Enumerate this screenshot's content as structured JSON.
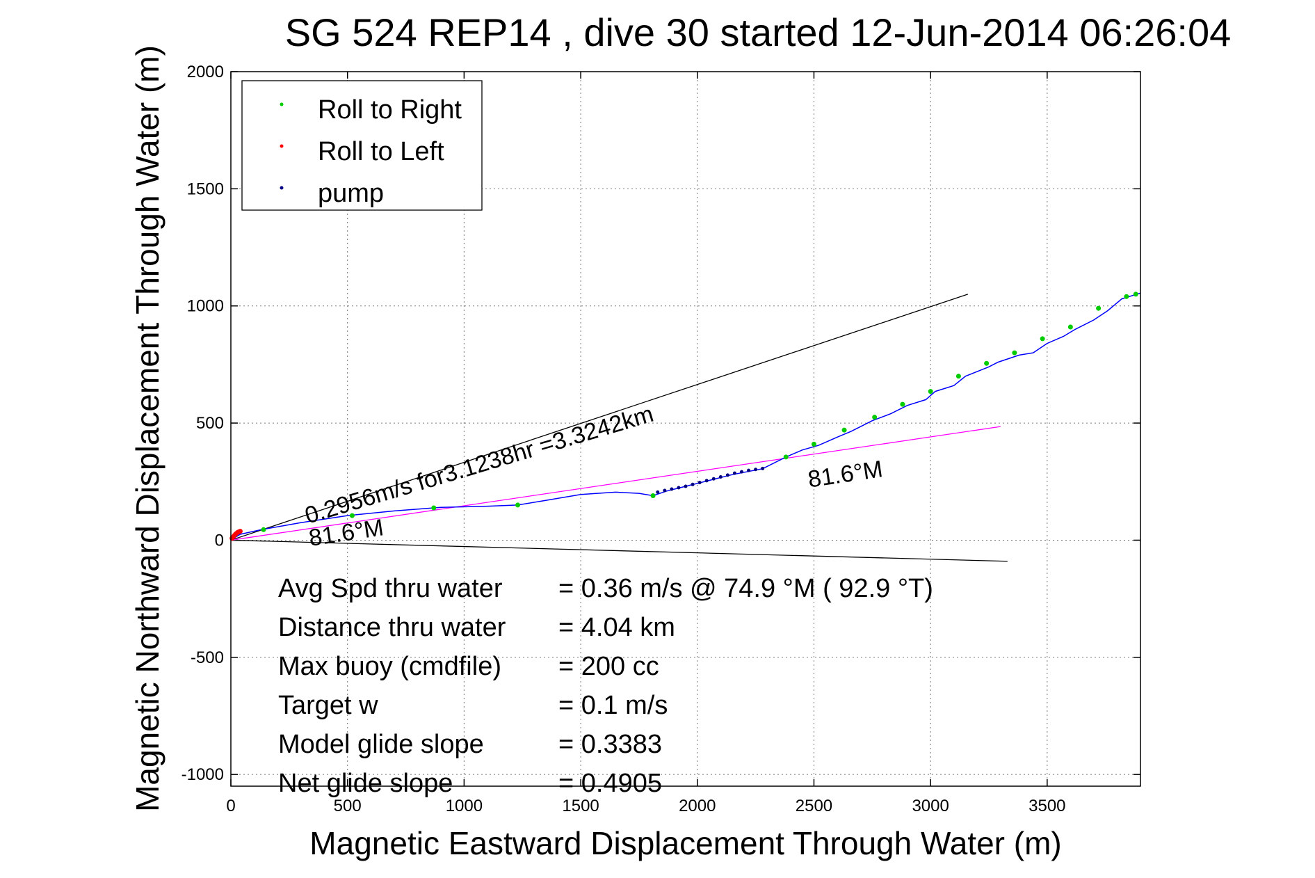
{
  "chart_data": {
    "type": "scatter",
    "title": "SG 524   REP14  , dive 30 started 12-Jun-2014 06:26:04",
    "xlabel": "Magnetic Eastward Displacement Through Water (m)",
    "ylabel": "Magnetic Northward Displacement Through Water (m)",
    "xlim": [
      0,
      3900
    ],
    "ylim": [
      -1050,
      2000
    ],
    "xticks": [
      0,
      500,
      1000,
      1500,
      2000,
      2500,
      3000,
      3500
    ],
    "yticks": [
      -1000,
      -500,
      0,
      500,
      1000,
      1500,
      2000
    ],
    "grid": true,
    "legend_position": "top-left",
    "legend": [
      {
        "label": "Roll to Right",
        "color": "#00cc00"
      },
      {
        "label": "Roll to Left",
        "color": "#ff0000"
      },
      {
        "label": "pump",
        "color": "#000080"
      }
    ],
    "track": {
      "color": "#0000ff",
      "x": [
        0,
        40,
        130,
        300,
        500,
        700,
        900,
        1100,
        1230,
        1350,
        1500,
        1650,
        1750,
        1810,
        1870,
        1950,
        2050,
        2150,
        2280,
        2380,
        2450,
        2520,
        2600,
        2660,
        2750,
        2830,
        2900,
        2980,
        3020,
        3100,
        3150,
        3250,
        3290,
        3380,
        3440,
        3500,
        3570,
        3620,
        3700,
        3760,
        3820,
        3900
      ],
      "y": [
        0,
        25,
        45,
        75,
        105,
        125,
        140,
        145,
        150,
        170,
        195,
        205,
        200,
        190,
        210,
        230,
        255,
        280,
        305,
        355,
        385,
        405,
        440,
        465,
        510,
        540,
        575,
        600,
        635,
        660,
        700,
        740,
        760,
        790,
        800,
        840,
        870,
        900,
        940,
        980,
        1030,
        1055
      ]
    },
    "roll_right_points": {
      "x": [
        140,
        520,
        870,
        1230,
        1810,
        2380,
        2500,
        2630,
        2760,
        2880,
        3000,
        3120,
        3240,
        3360,
        3480,
        3600,
        3720,
        3840,
        3880
      ],
      "y": [
        45,
        105,
        138,
        150,
        190,
        355,
        410,
        470,
        525,
        580,
        635,
        700,
        755,
        800,
        860,
        910,
        990,
        1040,
        1050
      ]
    },
    "roll_left_points": {
      "x": [
        5,
        10,
        15,
        20,
        25,
        30,
        35,
        40
      ],
      "y": [
        8,
        14,
        20,
        26,
        30,
        34,
        36,
        38
      ]
    },
    "pump_points": {
      "x": [
        1830,
        1860,
        1890,
        1920,
        1950,
        1980,
        2010,
        2040,
        2070,
        2100,
        2130,
        2160,
        2190,
        2220,
        2250,
        2280
      ],
      "y": [
        205,
        212,
        218,
        224,
        230,
        238,
        246,
        254,
        262,
        270,
        278,
        286,
        292,
        298,
        302,
        306
      ]
    },
    "reference_lines": [
      {
        "name": "upper",
        "color": "#000000",
        "x": [
          0,
          3160
        ],
        "y": [
          0,
          1050
        ]
      },
      {
        "name": "lower",
        "color": "#000000",
        "x": [
          0,
          3330
        ],
        "y": [
          0,
          -90
        ]
      },
      {
        "name": "heading",
        "color": "#ff00ff",
        "x": [
          0,
          3300
        ],
        "y": [
          0,
          485
        ]
      }
    ],
    "annotations": [
      {
        "text": "0.2956m/s for3.1238hr =3.3242km",
        "x": 330,
        "y": 70,
        "rotation_data_slope": 0.296
      },
      {
        "text": "81.6°M",
        "x": 340,
        "y": -25,
        "rotation_data_slope": 0.148
      },
      {
        "text": "81.6°M",
        "x": 2480,
        "y": 225,
        "rotation_data_slope": 0.148
      }
    ],
    "stats": [
      {
        "label": "Avg Spd thru water",
        "value": "=  0.36 m/s @  74.9 °M ( 92.9 °T)"
      },
      {
        "label": "Distance thru water",
        "value": "=  4.04 km"
      },
      {
        "label": "Max buoy (cmdfile)",
        "value": "= 200 cc"
      },
      {
        "label": "Target w",
        "value": "= 0.1 m/s"
      },
      {
        "label": "Model glide slope",
        "value": "= 0.3383"
      },
      {
        "label": "Net glide slope",
        "value": "= 0.4905"
      }
    ]
  }
}
